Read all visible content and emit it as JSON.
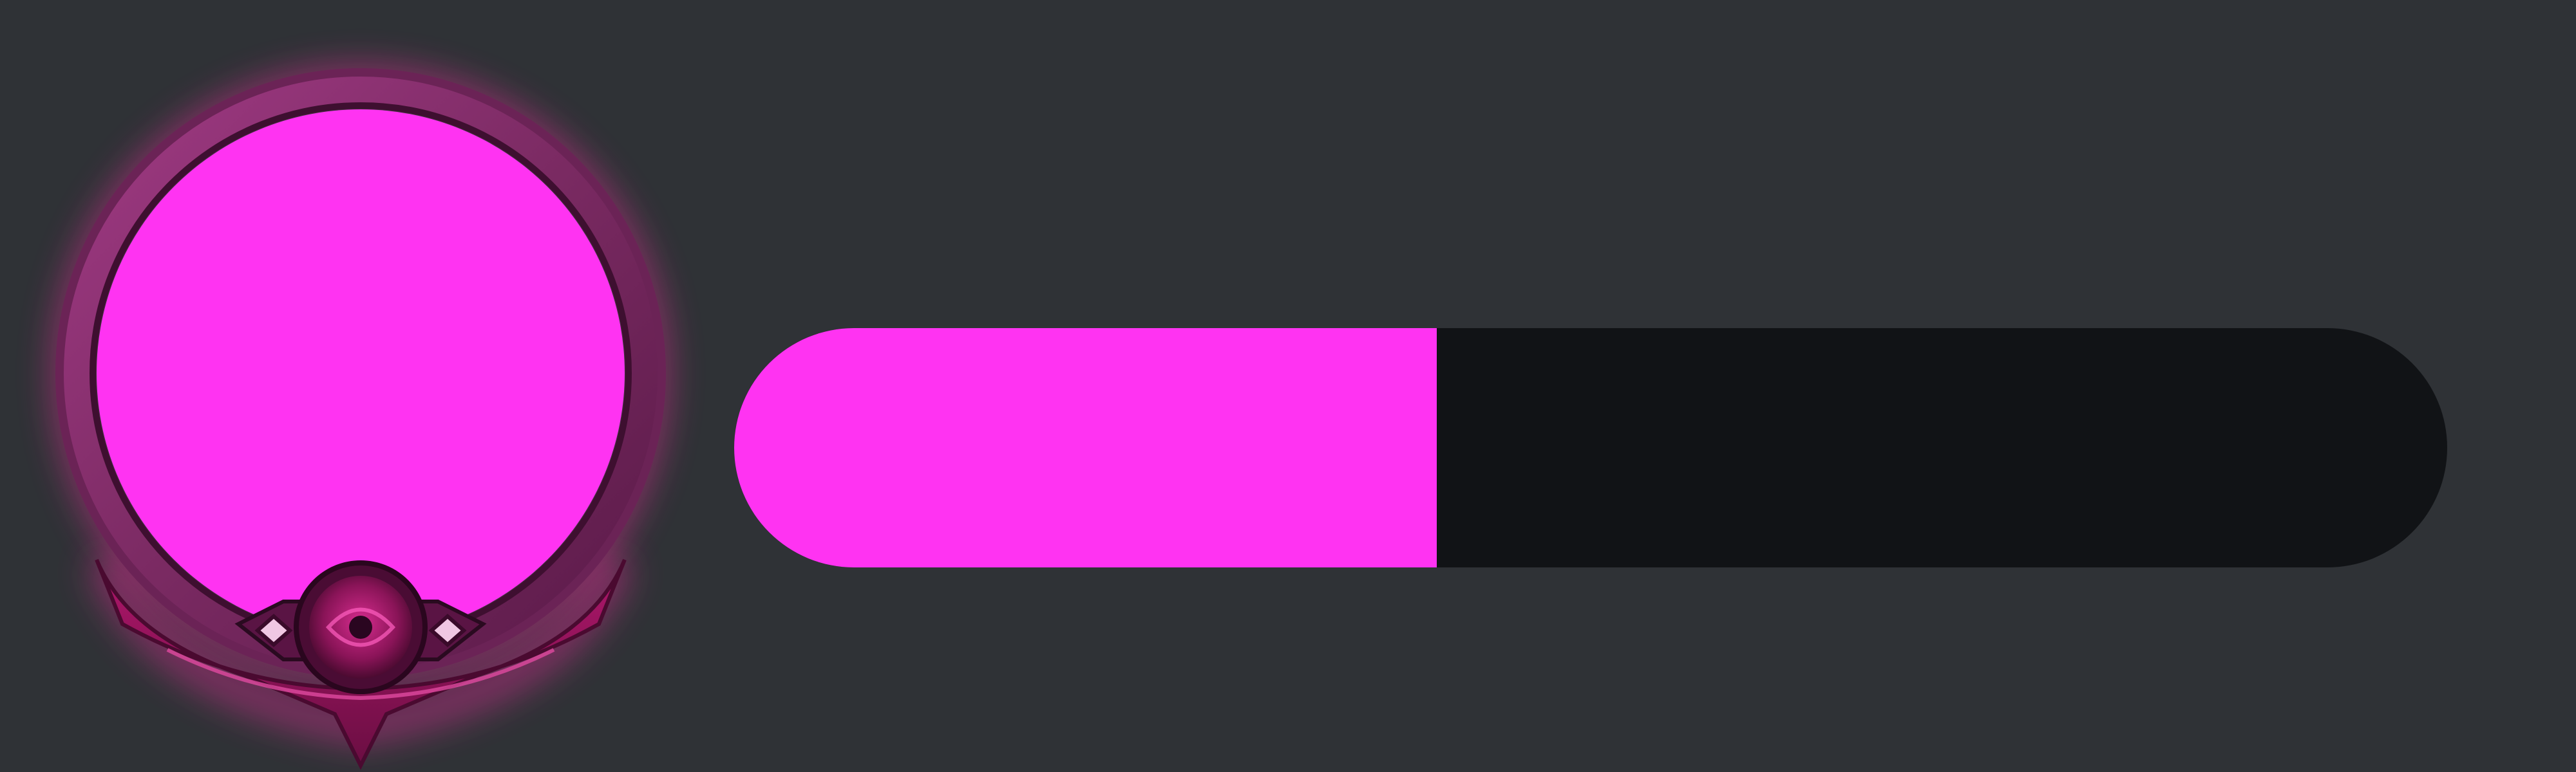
{
  "avatar": {
    "icon": "level-border-frame-icon",
    "frame_color": "#b0176c",
    "glow_color": "#ff2fa8",
    "portrait_color": "#ff33f2"
  },
  "progress": {
    "value": 0.41,
    "fill_color": "#ff33f2",
    "track_color": "#111316"
  }
}
